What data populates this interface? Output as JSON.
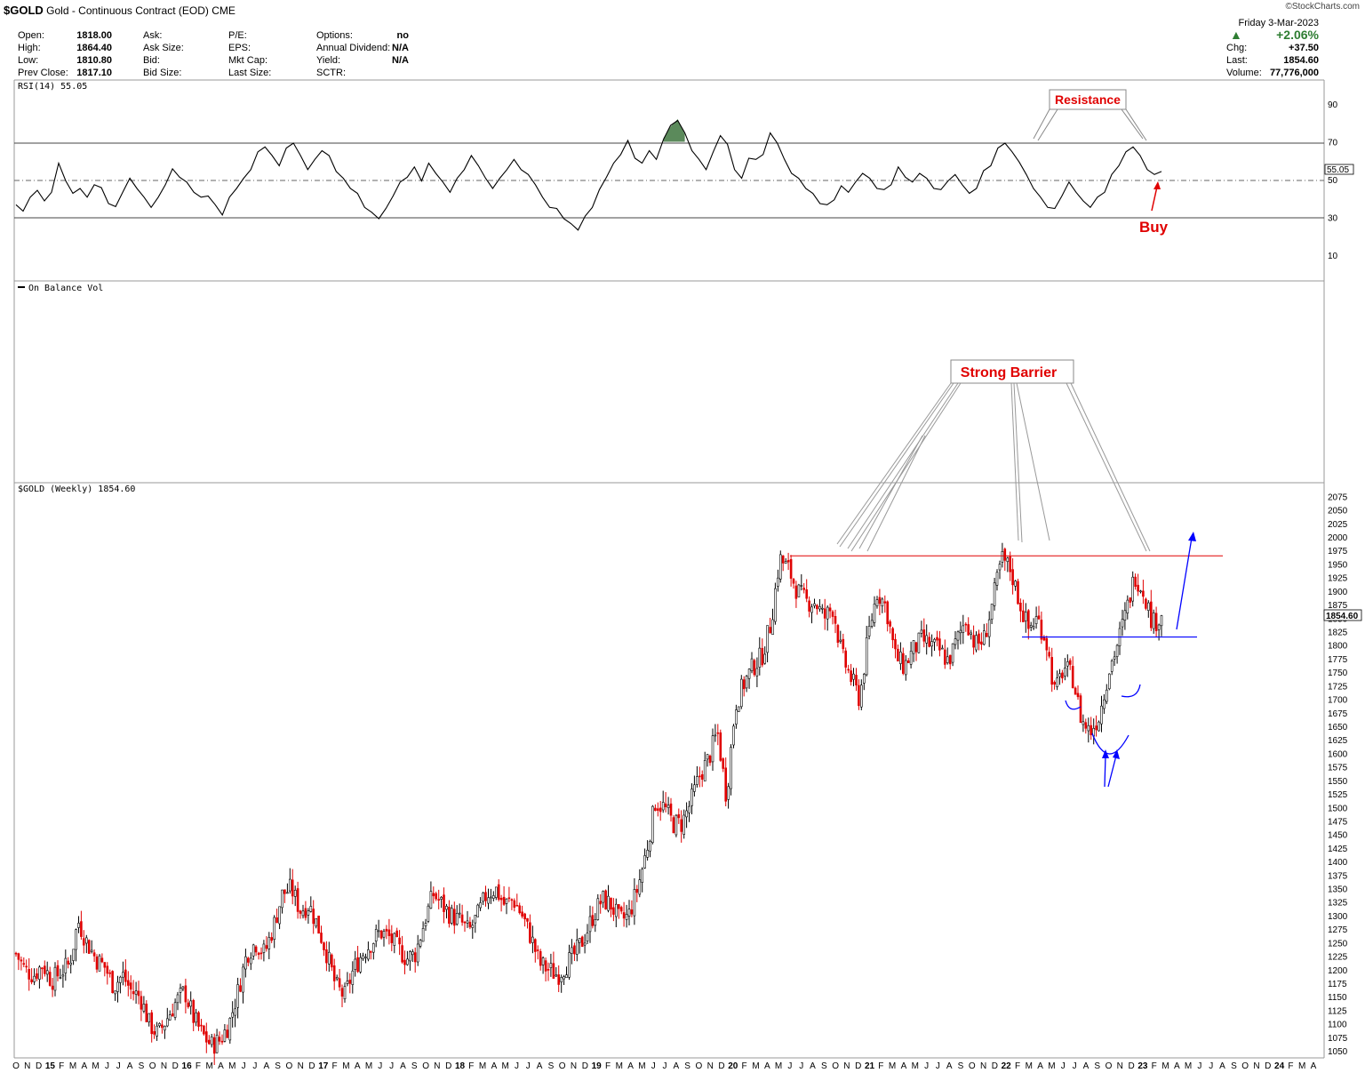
{
  "header": {
    "symbol": "$GOLD",
    "name": "Gold - Continuous Contract (EOD)",
    "exchange": "CME",
    "watermark": "©StockCharts.com",
    "stats_col1": [
      {
        "label": "Open:",
        "value": "1818.00"
      },
      {
        "label": "High:",
        "value": "1864.40"
      },
      {
        "label": "Low:",
        "value": "1810.80"
      },
      {
        "label": "Prev Close:",
        "value": "1817.10"
      }
    ],
    "stats_col2": [
      "Ask:",
      "Ask Size:",
      "Bid:",
      "Bid Size:"
    ],
    "stats_col3": [
      "P/E:",
      "EPS:",
      "Mkt Cap:",
      "Last Size:"
    ],
    "stats_col4": [
      {
        "label": "Options:",
        "value": "no"
      },
      {
        "label": "Annual Dividend:",
        "value": "N/A"
      },
      {
        "label": "Yield:",
        "value": "N/A"
      },
      {
        "label": "SCTR:",
        "value": ""
      }
    ],
    "date": "Friday  3-Mar-2023",
    "change_pct": "+2.06%",
    "right_stats": [
      {
        "label": "Chg:",
        "value": "+37.50"
      },
      {
        "label": "Last:",
        "value": "1854.60"
      },
      {
        "label": "Volume:",
        "value": "77,776,000"
      }
    ],
    "up_color": "#2e7d32"
  },
  "chart_data": [
    {
      "type": "line",
      "panel": "RSI",
      "title": "RSI(14) 55.05",
      "last_value": "55.05",
      "yticks": [
        90,
        70,
        50,
        30,
        10
      ],
      "ylim": [
        0,
        100
      ],
      "reference_lines": [
        70,
        50,
        30
      ],
      "x_range": [
        "2014-10",
        "2023-03"
      ],
      "series": [
        {
          "values": [
            36,
            34,
            40,
            45,
            38,
            44,
            58,
            50,
            42,
            46,
            40,
            48,
            45,
            38,
            35,
            44,
            50,
            46,
            40,
            36,
            40,
            48,
            55,
            52,
            48,
            44,
            40,
            42,
            36,
            32,
            40,
            46,
            50,
            56,
            64,
            68,
            62,
            58,
            66,
            70,
            62,
            56,
            60,
            66,
            62,
            55,
            50,
            46,
            42,
            36,
            32,
            30,
            34,
            42,
            48,
            52,
            56,
            50,
            58,
            54,
            48,
            44,
            50,
            56,
            62,
            58,
            50,
            46,
            50,
            56,
            60,
            56,
            52,
            48,
            40,
            36,
            34,
            30,
            26,
            24,
            30,
            36,
            44,
            52,
            58,
            64,
            70,
            62,
            58,
            66,
            60,
            72,
            78,
            82,
            74,
            66,
            60,
            56,
            64,
            74,
            68,
            56,
            50,
            62,
            60,
            64,
            74,
            70,
            60,
            54,
            50,
            46,
            42,
            38,
            36,
            40,
            46,
            44,
            48,
            54,
            50,
            46,
            44,
            48,
            56,
            52,
            48,
            54,
            50,
            46,
            44,
            50,
            52,
            48,
            42,
            46,
            54,
            58,
            66,
            70,
            64,
            60,
            52,
            46,
            40,
            36,
            34,
            42,
            48,
            44,
            38,
            36,
            40,
            44,
            52,
            58,
            64,
            68,
            62,
            56,
            52,
            55
          ]
        }
      ]
    },
    {
      "type": "line",
      "panel": "On Balance Volume",
      "title": "On Balance Vol",
      "series": []
    },
    {
      "type": "candlestick",
      "panel": "Price",
      "title": "$GOLD (Weekly) 1854.60",
      "last_value": "1854.60",
      "ylim": [
        1037,
        2092
      ],
      "yticks": [
        2075,
        2050,
        2025,
        2000,
        1975,
        1950,
        1925,
        1900,
        1875,
        1850,
        1825,
        1800,
        1775,
        1750,
        1725,
        1700,
        1675,
        1650,
        1625,
        1600,
        1575,
        1550,
        1525,
        1500,
        1475,
        1450,
        1425,
        1400,
        1375,
        1350,
        1325,
        1300,
        1275,
        1250,
        1225,
        1200,
        1175,
        1150,
        1125,
        1100,
        1075,
        1050
      ],
      "x_range": [
        "2014-10",
        "2024-03"
      ],
      "xticks": [
        "O",
        "N",
        "D",
        "15",
        "F",
        "M",
        "A",
        "M",
        "J",
        "J",
        "A",
        "S",
        "O",
        "N",
        "D",
        "16",
        "F",
        "M",
        "A",
        "M",
        "J",
        "J",
        "A",
        "S",
        "O",
        "N",
        "D",
        "17",
        "F",
        "M",
        "A",
        "M",
        "J",
        "J",
        "A",
        "S",
        "O",
        "N",
        "D",
        "18",
        "F",
        "M",
        "A",
        "M",
        "J",
        "J",
        "A",
        "S",
        "O",
        "N",
        "D",
        "19",
        "F",
        "M",
        "A",
        "M",
        "J",
        "J",
        "A",
        "S",
        "O",
        "N",
        "D",
        "20",
        "F",
        "M",
        "A",
        "M",
        "J",
        "J",
        "A",
        "S",
        "O",
        "N",
        "D",
        "21",
        "F",
        "M",
        "A",
        "M",
        "J",
        "J",
        "A",
        "S",
        "O",
        "N",
        "D",
        "22",
        "F",
        "M",
        "A",
        "M",
        "J",
        "J",
        "A",
        "S",
        "O",
        "N",
        "D",
        "23",
        "F",
        "M",
        "A",
        "M",
        "J",
        "J",
        "A",
        "S",
        "O",
        "N",
        "D",
        "24",
        "F",
        "M",
        "A"
      ],
      "price_path": [
        1230,
        1200,
        1190,
        1210,
        1180,
        1195,
        1210,
        1290,
        1250,
        1220,
        1205,
        1170,
        1190,
        1160,
        1150,
        1100,
        1080,
        1110,
        1140,
        1160,
        1110,
        1080,
        1060,
        1070,
        1100,
        1160,
        1230,
        1250,
        1230,
        1280,
        1340,
        1350,
        1310,
        1320,
        1280,
        1230,
        1170,
        1150,
        1200,
        1230,
        1250,
        1270,
        1260,
        1240,
        1220,
        1230,
        1290,
        1340,
        1320,
        1300,
        1290,
        1270,
        1300,
        1340,
        1350,
        1320,
        1330,
        1300,
        1260,
        1210,
        1200,
        1190,
        1210,
        1230,
        1260,
        1300,
        1330,
        1320,
        1290,
        1300,
        1350,
        1420,
        1510,
        1500,
        1470,
        1470,
        1510,
        1560,
        1590,
        1640,
        1520,
        1690,
        1730,
        1760,
        1780,
        1840,
        1960,
        1940,
        1900,
        1880,
        1880,
        1850,
        1870,
        1780,
        1740,
        1700,
        1820,
        1900,
        1870,
        1780,
        1760,
        1790,
        1810,
        1800,
        1790,
        1770,
        1810,
        1850,
        1800,
        1810,
        1880,
        1960,
        1940,
        1880,
        1830,
        1850,
        1810,
        1710,
        1760,
        1740,
        1660,
        1640,
        1670,
        1750,
        1800,
        1860,
        1930,
        1900,
        1840,
        1854.6
      ],
      "levels": [
        {
          "name": "resistance",
          "value": 1965,
          "color": "#e00000"
        },
        {
          "name": "support",
          "value": 1815,
          "color": "#0000ff"
        }
      ]
    }
  ],
  "annotations": {
    "rsi_resistance": "Resistance",
    "rsi_buy": "Buy",
    "price_barrier": "Strong Barrier"
  }
}
